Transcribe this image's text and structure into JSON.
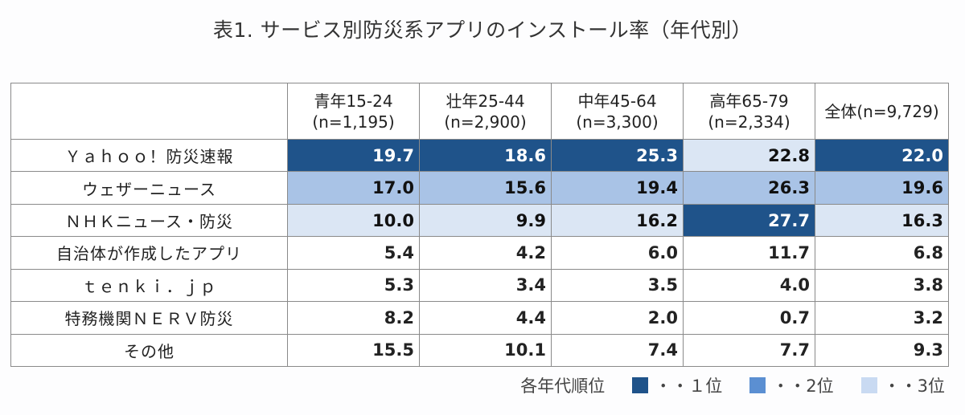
{
  "title": "表1. サービス別防災系アプリのインストール率（年代別）",
  "chart_data": {
    "type": "table",
    "title": "表1. サービス別防災系アプリのインストール率（年代別）",
    "columns": [
      {
        "line1": "青年15-24",
        "line2": "(n=1,195)"
      },
      {
        "line1": "壮年25-44",
        "line2": "(n=2,900)"
      },
      {
        "line1": "中年45-64",
        "line2": "(n=3,300)"
      },
      {
        "line1": "高年65-79",
        "line2": "(n=2,334)"
      },
      {
        "line1": "全体(n=9,729)",
        "line2": ""
      }
    ],
    "rows": [
      {
        "label": "Ｙａｈｏｏ！防災速報",
        "values": [
          "19.7",
          "18.6",
          "25.3",
          "22.8",
          "22.0"
        ],
        "ranks": [
          1,
          1,
          1,
          3,
          1
        ]
      },
      {
        "label": "ウェザーニュース",
        "values": [
          "17.0",
          "15.6",
          "19.4",
          "26.3",
          "19.6"
        ],
        "ranks": [
          2,
          2,
          2,
          2,
          2
        ]
      },
      {
        "label": "ＮＨＫニュース・防災",
        "values": [
          "10.0",
          "9.9",
          "16.2",
          "27.7",
          "16.3"
        ],
        "ranks": [
          3,
          3,
          3,
          1,
          3
        ]
      },
      {
        "label": "自治体が作成したアプリ",
        "values": [
          "5.4",
          "4.2",
          "6.0",
          "11.7",
          "6.8"
        ],
        "ranks": [
          0,
          0,
          0,
          0,
          0
        ]
      },
      {
        "label": "ｔｅｎｋｉ．ｊｐ",
        "values": [
          "5.3",
          "3.4",
          "3.5",
          "4.0",
          "3.8"
        ],
        "ranks": [
          0,
          0,
          0,
          0,
          0
        ]
      },
      {
        "label": "特務機関ＮＥＲＶ防災",
        "values": [
          "8.2",
          "4.4",
          "2.0",
          "0.7",
          "3.2"
        ],
        "ranks": [
          0,
          0,
          0,
          0,
          0
        ]
      },
      {
        "label": "その他",
        "values": [
          "15.5",
          "10.1",
          "7.4",
          "7.7",
          "9.3"
        ],
        "ranks": [
          0,
          0,
          0,
          0,
          0
        ]
      }
    ]
  },
  "legend": {
    "title": "各年代順位",
    "items": [
      {
        "label": "・・１位",
        "color": "#1f538a"
      },
      {
        "label": "・・2位",
        "color": "#5b8fd2"
      },
      {
        "label": "・・3位",
        "color": "#c9daf2"
      }
    ]
  }
}
